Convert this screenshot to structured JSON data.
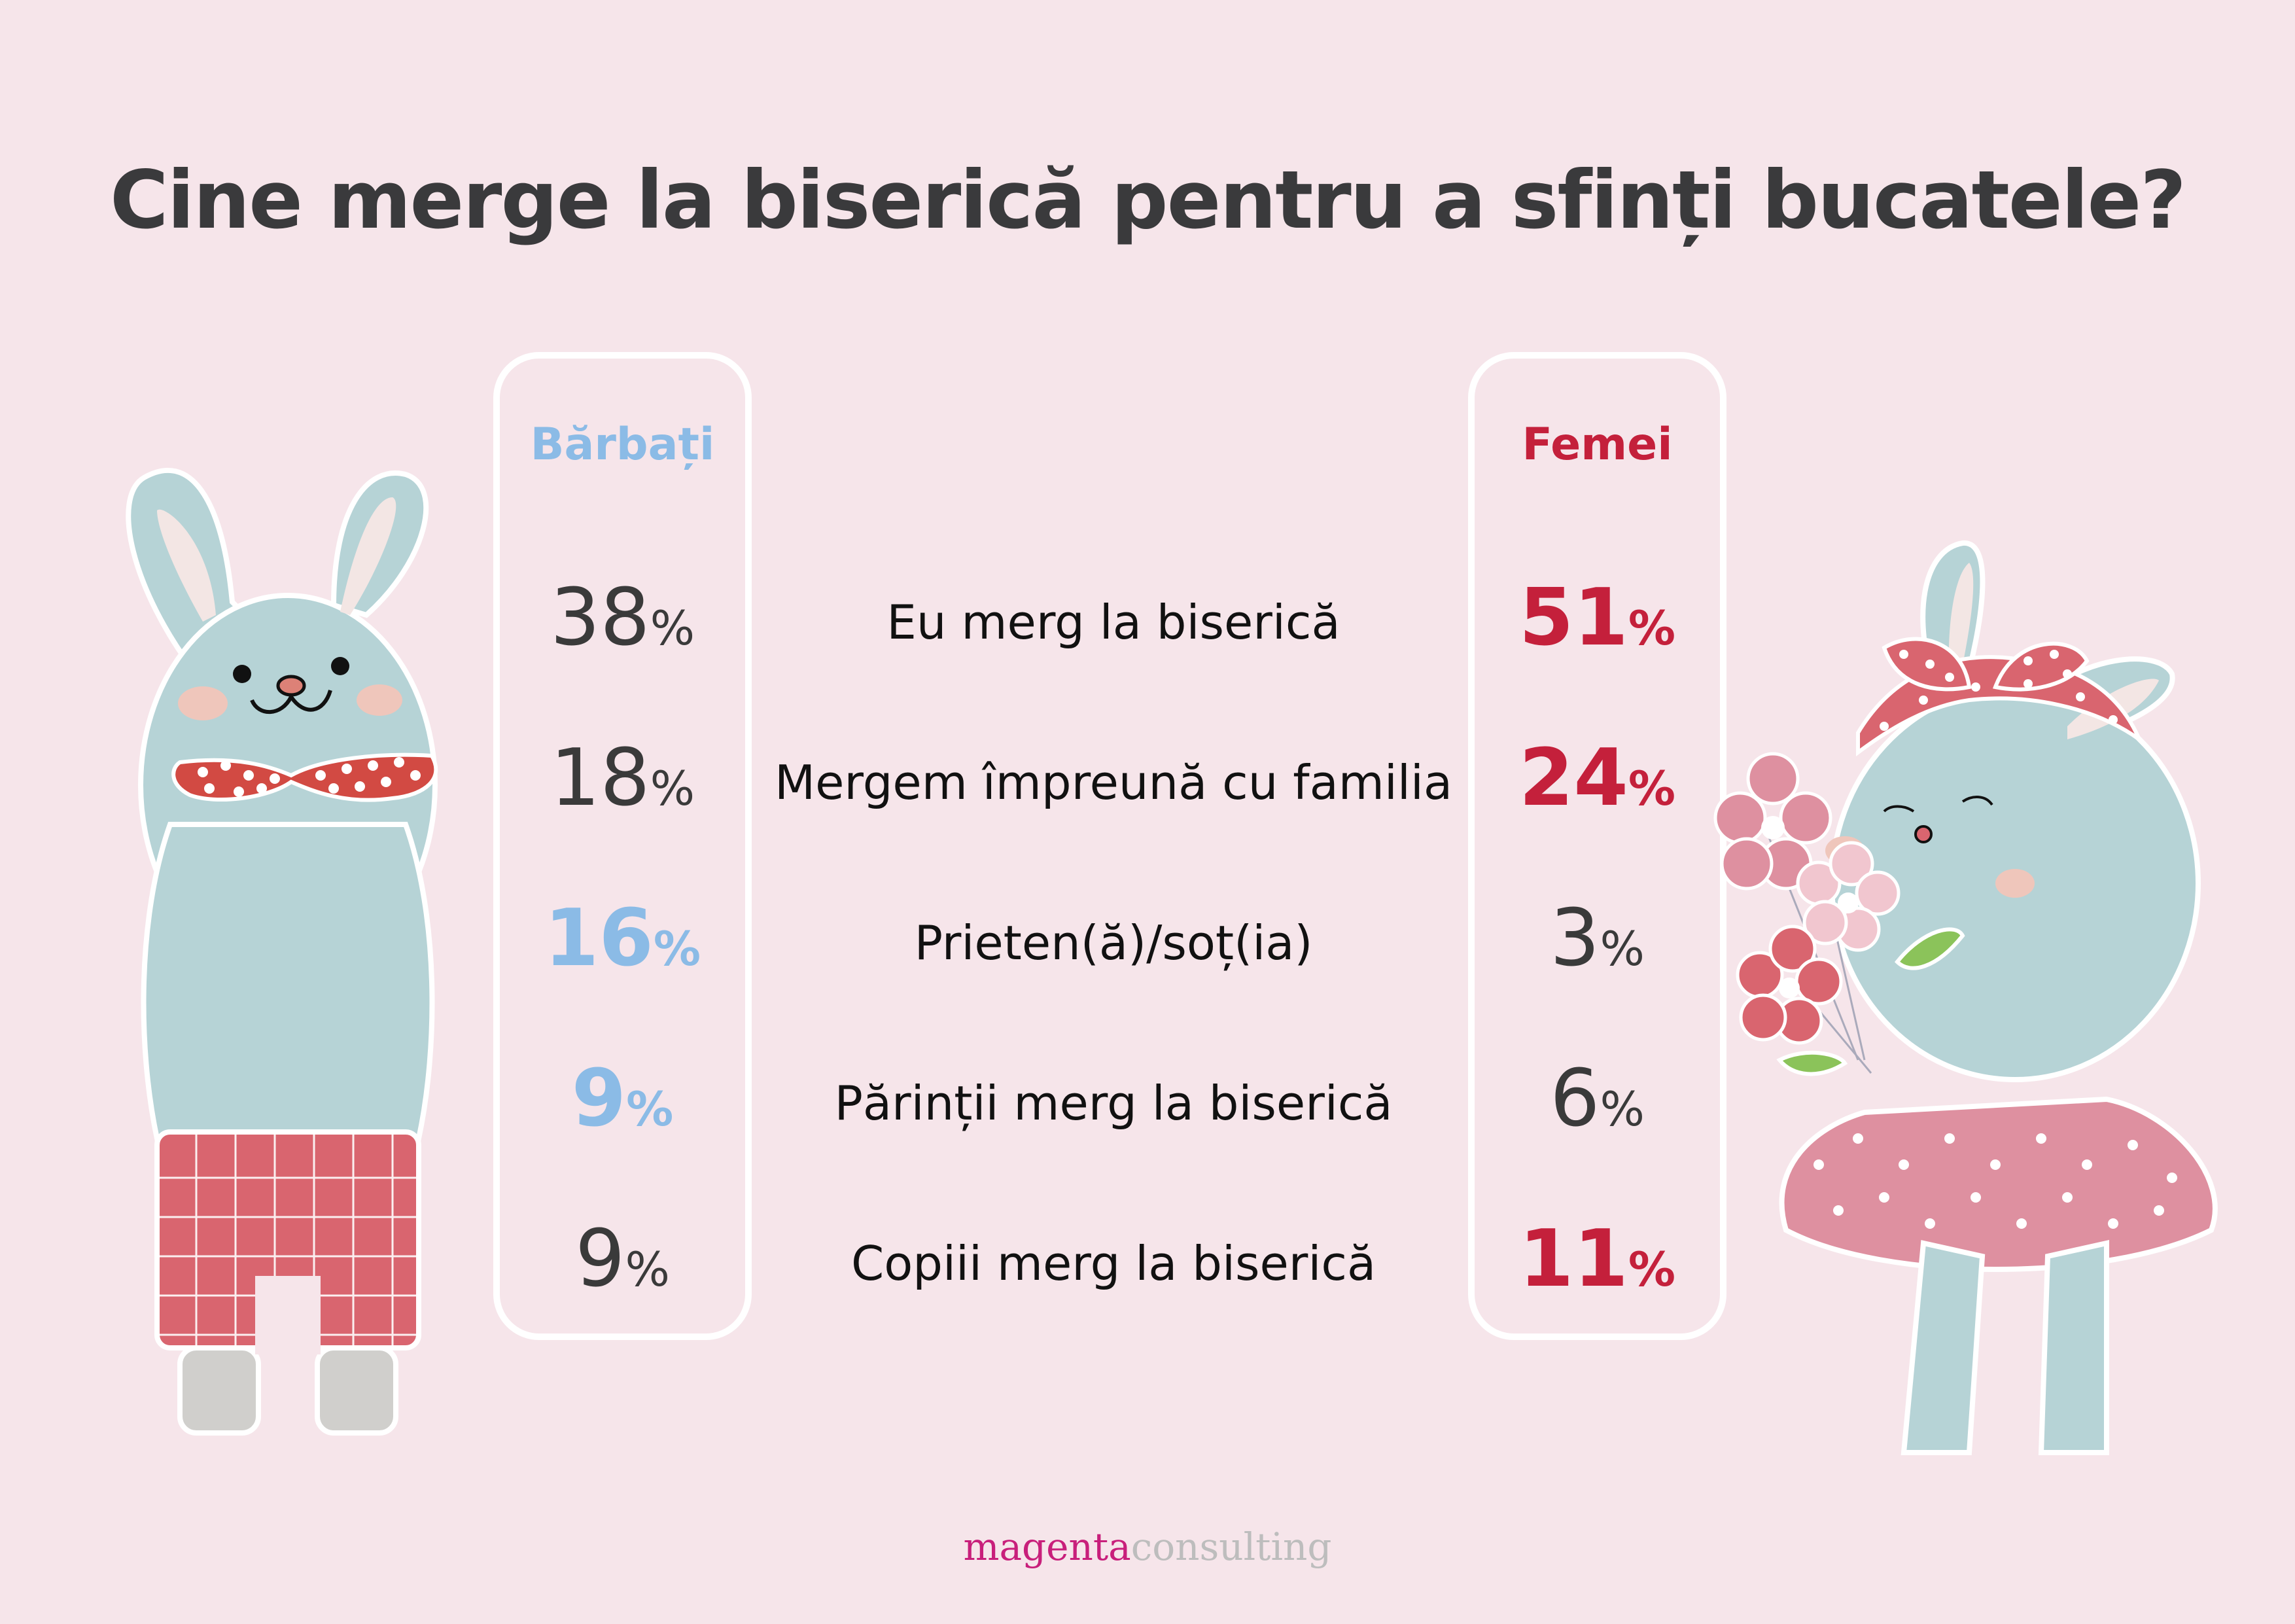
{
  "title": "Cine merge la biserică pentru a sfinți bucatele?",
  "columns": {
    "men": {
      "label": "Bărbați",
      "color": "#8bbbe6"
    },
    "women": {
      "label": "Femei",
      "color": "#c4203b"
    }
  },
  "rows": [
    {
      "label": "Eu merg la biserică",
      "men": "38",
      "women": "51",
      "men_highlight": false,
      "women_highlight": true
    },
    {
      "label": "Mergem împreună cu familia",
      "men": "18",
      "women": "24",
      "men_highlight": false,
      "women_highlight": true
    },
    {
      "label": "Prieten(ă)/soț(ia)",
      "men": "16",
      "women": "3",
      "men_highlight": true,
      "women_highlight": false
    },
    {
      "label": "Părinții merg la biserică",
      "men": "9",
      "women": "6",
      "men_highlight": true,
      "women_highlight": false
    },
    {
      "label": "Copiii merg la biserică",
      "men": "9",
      "women": "11",
      "men_highlight": false,
      "women_highlight": true
    }
  ],
  "percent_sign": "%",
  "footer": {
    "brand_primary": "magenta",
    "brand_secondary": "consulting"
  },
  "illustrations": {
    "left": "boy-bunny-icon",
    "right": "girl-bunny-with-flowers-icon"
  },
  "colors": {
    "background": "#f6e5ea",
    "bunny_body": "#b6d3d6",
    "bow_red": "#d24a43",
    "skirt_pink": "#de90a0",
    "brand_magenta": "#c81f7b"
  }
}
